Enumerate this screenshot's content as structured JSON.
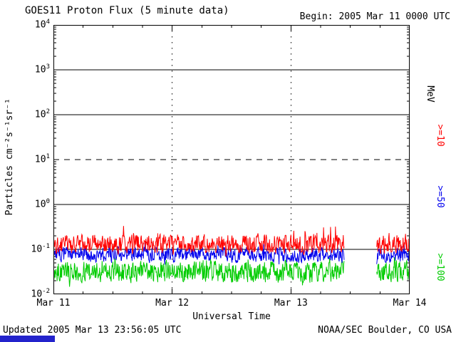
{
  "header": {
    "title": "GOES11 Proton Flux (5 minute data)",
    "begin_label": "Begin: 2005 Mar 11 0000 UTC"
  },
  "footer": {
    "updated": "Updated 2005 Mar 13 23:56:05 UTC",
    "source": "NOAA/SEC Boulder, CO USA"
  },
  "chart_data": {
    "type": "line",
    "title": "GOES11 Proton Flux (5 minute data)",
    "xlabel": "Universal Time",
    "ylabel": "Particles cm⁻²s⁻¹sr⁻¹",
    "x_ticks": [
      "Mar 11",
      "Mar 12",
      "Mar 13",
      "Mar 14"
    ],
    "x_range_days": [
      0,
      3
    ],
    "y_scale": "log10",
    "ylim_log10": [
      -2,
      4
    ],
    "y_ticks_exponents": [
      4,
      3,
      2,
      1,
      0,
      -1,
      -2
    ],
    "sample_interval_minutes": 5,
    "grid": {
      "solid_decades": [
        3,
        2,
        0,
        -1
      ],
      "dashed_decades": [
        1
      ],
      "vertical_dotted_days": [
        1,
        2
      ]
    },
    "right_axis_unit": "MeV",
    "right_labels": [
      {
        "text": "MeV",
        "color": "#000000"
      },
      {
        "text": ">=10",
        "color": "#ff0000"
      },
      {
        "text": ">=50",
        "color": "#0000ee"
      },
      {
        "text": ">=100",
        "color": "#00cc00"
      }
    ],
    "data_gap_days": [
      2.45,
      2.72
    ],
    "series": [
      {
        "name": ">=10 MeV",
        "color": "#ff0000",
        "base_log10": -0.88,
        "noise_log10": 0.26,
        "spike_log10": 0.45,
        "mean_flux": 0.13,
        "approx_range_flux": [
          0.07,
          0.45
        ],
        "seed": 42
      },
      {
        "name": ">=50 MeV",
        "color": "#0000ee",
        "base_log10": -1.12,
        "noise_log10": 0.2,
        "spike_log10": 0.25,
        "mean_flux": 0.075,
        "approx_range_flux": [
          0.04,
          0.18
        ],
        "seed": 7
      },
      {
        "name": ">=100 MeV",
        "color": "#00cc00",
        "base_log10": -1.5,
        "noise_log10": 0.28,
        "spike_log10": 0.3,
        "mean_flux": 0.032,
        "approx_range_flux": [
          0.013,
          0.09
        ],
        "seed": 13
      }
    ]
  }
}
